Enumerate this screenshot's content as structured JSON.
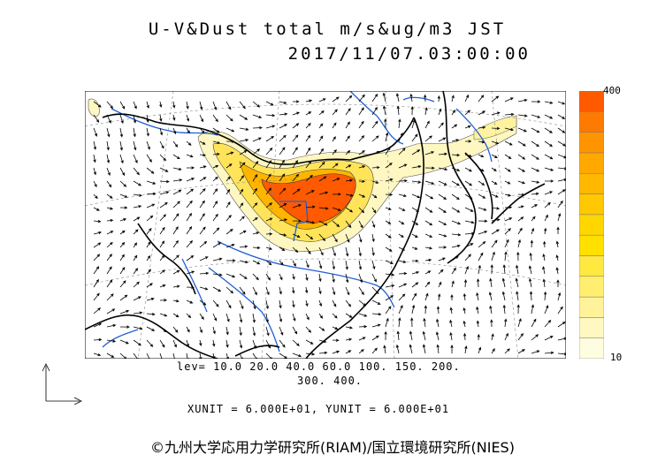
{
  "title": {
    "line1": "U-V&Dust total m/s&ug/m3 JST",
    "line2": "2017/11/07.03:00:00"
  },
  "colorbar": {
    "max_label": "400",
    "min_label": "10",
    "colors": [
      "#fffde0",
      "#fff8c0",
      "#fff29a",
      "#ffee70",
      "#ffe840",
      "#ffe000",
      "#ffd600",
      "#ffc800",
      "#ffb800",
      "#ffa800",
      "#ff9400",
      "#ff7a00",
      "#ff5a00"
    ]
  },
  "levels": {
    "line1": "lev= 10.0 20.0 40.0 60.0 100. 150. 200.",
    "line2": "300. 400."
  },
  "units": "XUNIT = 6.000E+01, YUNIT = 6.000E+01",
  "credit": "©九州大学応用力学研究所(RIAM)/国立環境研究所(NIES)",
  "colors": {
    "coast": "#000000",
    "river": "#1f5fd6",
    "dust_high": "#ff5a00",
    "dust_low": "#fff8c0"
  }
}
